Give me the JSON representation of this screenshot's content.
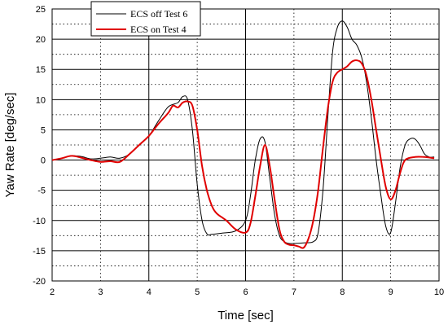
{
  "chart_data": {
    "type": "line",
    "xlabel": "Time [sec]",
    "ylabel": "Yaw Rate [deg/sec]",
    "xlim": [
      2,
      10
    ],
    "ylim": [
      -20,
      25
    ],
    "xticks": [
      2,
      3,
      4,
      5,
      6,
      7,
      8,
      9,
      10
    ],
    "yticks": [
      -20,
      -17.5,
      -15,
      -12.5,
      -10,
      -7.5,
      -5,
      -2.5,
      0,
      2.5,
      5,
      7.5,
      10,
      12.5,
      15,
      17.5,
      20,
      22.5,
      25
    ],
    "ytick_labels": [
      "-20",
      "",
      "-15",
      "",
      "-10",
      "",
      "-5",
      "",
      "0",
      "",
      "5",
      "",
      "10",
      "",
      "15",
      "",
      "20",
      "",
      "25"
    ],
    "grid": true,
    "legend_position": "top-left",
    "series": [
      {
        "name": "ECS off Test 6",
        "color": "#000000",
        "x": [
          2.0,
          2.2,
          2.4,
          2.6,
          2.8,
          3.0,
          3.2,
          3.4,
          3.6,
          3.8,
          4.0,
          4.2,
          4.4,
          4.6,
          4.7,
          4.8,
          4.9,
          5.0,
          5.1,
          5.2,
          5.3,
          5.5,
          5.8,
          6.0,
          6.1,
          6.2,
          6.3,
          6.4,
          6.5,
          6.6,
          6.7,
          6.8,
          6.9,
          7.0,
          7.2,
          7.4,
          7.5,
          7.6,
          7.7,
          7.8,
          7.9,
          8.0,
          8.1,
          8.2,
          8.3,
          8.4,
          8.5,
          8.6,
          8.7,
          8.8,
          8.9,
          9.0,
          9.1,
          9.2,
          9.3,
          9.4,
          9.5,
          9.6,
          9.7,
          9.8,
          9.9
        ],
        "y": [
          0.0,
          0.3,
          0.7,
          0.6,
          0.2,
          0.3,
          0.5,
          0.3,
          1.0,
          2.5,
          4.0,
          6.5,
          8.8,
          9.5,
          10.5,
          10.0,
          5.0,
          -4.0,
          -10.0,
          -12.2,
          -12.3,
          -12.1,
          -11.7,
          -10.0,
          -6.0,
          0.0,
          3.5,
          3.0,
          -3.0,
          -9.0,
          -12.5,
          -13.5,
          -13.8,
          -13.8,
          -13.7,
          -13.5,
          -12.0,
          -5.0,
          7.0,
          18.0,
          22.0,
          23.0,
          22.0,
          20.0,
          19.0,
          17.0,
          13.0,
          7.0,
          0.0,
          -6.0,
          -11.0,
          -12.0,
          -7.0,
          -1.0,
          2.5,
          3.5,
          3.5,
          2.5,
          1.0,
          0.5,
          0.5
        ]
      },
      {
        "name": "ECS on Test 4",
        "color": "#e00000",
        "x": [
          2.0,
          2.2,
          2.4,
          2.6,
          2.8,
          3.0,
          3.2,
          3.4,
          3.6,
          3.8,
          4.0,
          4.2,
          4.4,
          4.5,
          4.6,
          4.7,
          4.8,
          4.9,
          5.0,
          5.1,
          5.2,
          5.3,
          5.4,
          5.6,
          5.8,
          6.0,
          6.1,
          6.2,
          6.3,
          6.4,
          6.5,
          6.6,
          6.7,
          6.8,
          6.9,
          7.0,
          7.1,
          7.2,
          7.3,
          7.4,
          7.5,
          7.6,
          7.7,
          7.8,
          7.9,
          8.0,
          8.1,
          8.2,
          8.3,
          8.4,
          8.5,
          8.6,
          8.7,
          8.8,
          8.9,
          9.0,
          9.1,
          9.2,
          9.3,
          9.5,
          9.7,
          9.9
        ],
        "y": [
          0.0,
          0.3,
          0.7,
          0.4,
          0.0,
          -0.3,
          -0.2,
          -0.3,
          1.0,
          2.5,
          4.0,
          6.0,
          7.8,
          9.0,
          8.7,
          9.5,
          9.7,
          9.0,
          5.0,
          -1.0,
          -5.0,
          -7.5,
          -8.8,
          -10.0,
          -11.5,
          -12.0,
          -10.5,
          -6.0,
          -1.0,
          2.5,
          -1.0,
          -6.5,
          -11.5,
          -13.5,
          -14.0,
          -14.1,
          -14.3,
          -14.5,
          -13.0,
          -10.0,
          -5.0,
          2.0,
          8.5,
          13.0,
          14.5,
          15.0,
          15.5,
          16.3,
          16.5,
          16.0,
          14.0,
          10.0,
          5.0,
          0.0,
          -4.5,
          -6.5,
          -5.0,
          -2.0,
          0.0,
          0.5,
          0.5,
          0.3
        ]
      }
    ]
  }
}
